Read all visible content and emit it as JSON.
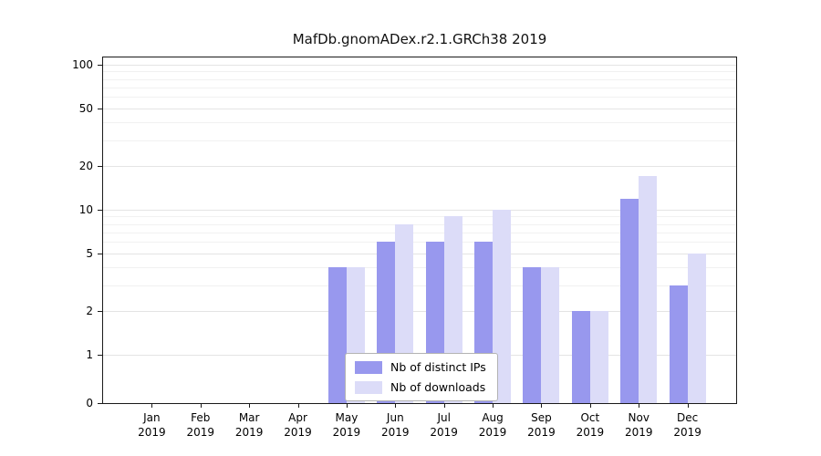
{
  "chart_data": {
    "type": "bar",
    "title": "MafDb.gnomADex.r2.1.GRCh38 2019",
    "categories": [
      "Jan",
      "Feb",
      "Mar",
      "Apr",
      "May",
      "Jun",
      "Jul",
      "Aug",
      "Sep",
      "Oct",
      "Nov",
      "Dec"
    ],
    "year": "2019",
    "series": [
      {
        "name": "Nb of distinct IPs",
        "color": "#9898ee",
        "values": [
          0,
          0,
          0,
          0,
          4,
          6,
          6,
          6,
          4,
          2,
          12,
          3
        ]
      },
      {
        "name": "Nb of downloads",
        "color": "#dcdcf8",
        "values": [
          0,
          0,
          0,
          0,
          4,
          8,
          9,
          10,
          4,
          2,
          17,
          5
        ]
      }
    ],
    "yscale": "log",
    "yticks": [
      0,
      1,
      2,
      5,
      10,
      20,
      50,
      100
    ],
    "minor_gridlines": [
      3,
      4,
      6,
      7,
      8,
      9,
      30,
      40,
      60,
      70,
      80,
      90
    ],
    "grid": true,
    "legend_position": "bottom-center",
    "xlabel": "",
    "ylabel": ""
  }
}
